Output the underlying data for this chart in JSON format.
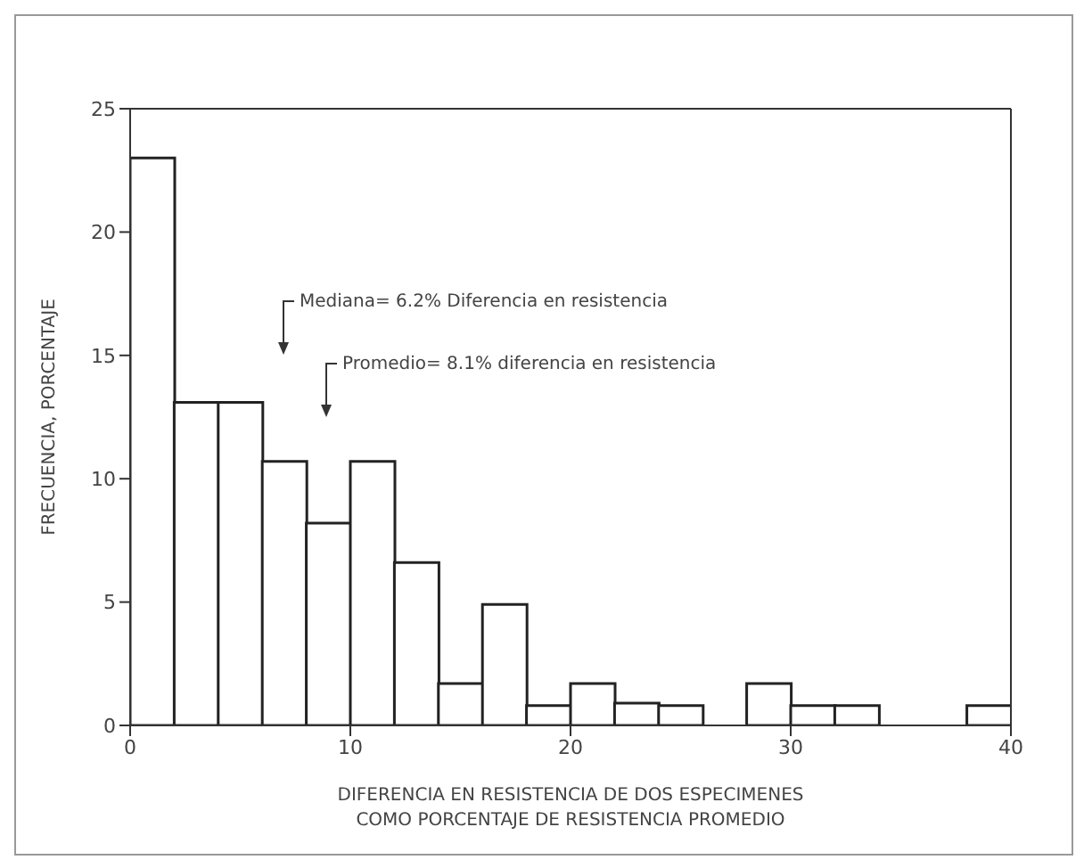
{
  "chart_data": {
    "type": "histogram",
    "xlabel": "DIFERENCIA EN RESISTENCIA DE DOS ESPECIMENES\nCOMO PORCENTAJE DE RESISTENCIA PROMEDIO",
    "ylabel": "FRECUENCIA, PORCENTAJE",
    "bins": [
      0,
      2,
      4,
      6,
      8,
      10,
      12,
      14,
      16,
      18,
      20,
      22,
      24,
      26,
      28,
      30,
      32,
      34,
      36,
      38,
      40
    ],
    "values": [
      23,
      13.1,
      13.1,
      10.7,
      8.2,
      10.7,
      6.6,
      1.7,
      4.9,
      0.8,
      1.7,
      0.9,
      0.8,
      0,
      1.7,
      0.8,
      0.8,
      0,
      0,
      0.8
    ],
    "color": "#ffffff",
    "xlim": [
      0,
      40
    ],
    "xticks": [
      0,
      10,
      20,
      30,
      40
    ],
    "ylim": [
      0,
      25
    ],
    "yticks": [
      0,
      5,
      10,
      15,
      20,
      25
    ],
    "annotations": [
      "Mediana= 6.2% Diferencia en resistencia",
      "Promedio= 8.1% diferencia en resistencia"
    ]
  }
}
